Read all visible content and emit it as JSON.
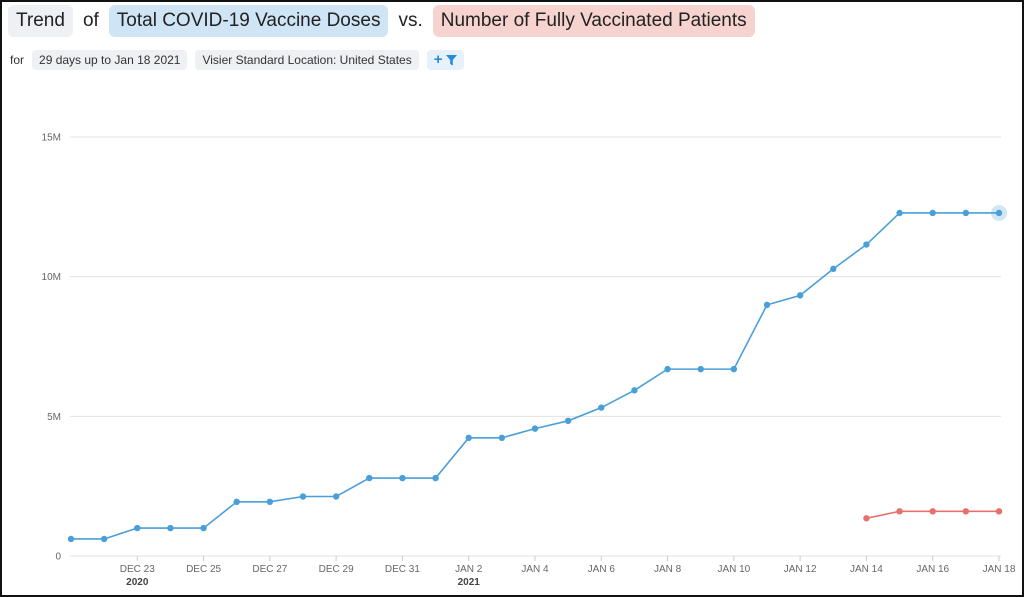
{
  "title": {
    "prefix": "Trend",
    "of": "of",
    "metric1": "Total COVID-19 Vaccine Doses",
    "vs": "vs.",
    "metric2": "Number of Fully Vaccinated Patients"
  },
  "filters": {
    "for_label": "for",
    "time_range": "29 days up to Jan 18 2021",
    "location": "Visier Standard Location: United States"
  },
  "colors": {
    "series1": "#4a9fd9",
    "series2": "#e8706b"
  },
  "chart_data": {
    "type": "line",
    "x": [
      "2020-12-21",
      "2020-12-22",
      "2020-12-23",
      "2020-12-24",
      "2020-12-25",
      "2020-12-26",
      "2020-12-27",
      "2020-12-28",
      "2020-12-29",
      "2020-12-30",
      "2020-12-31",
      "2021-01-01",
      "2021-01-02",
      "2021-01-03",
      "2021-01-04",
      "2021-01-05",
      "2021-01-06",
      "2021-01-07",
      "2021-01-08",
      "2021-01-09",
      "2021-01-10",
      "2021-01-11",
      "2021-01-12",
      "2021-01-13",
      "2021-01-14",
      "2021-01-15",
      "2021-01-16",
      "2021-01-17",
      "2021-01-18"
    ],
    "series": [
      {
        "name": "Total COVID-19 Vaccine Doses",
        "values": [
          0.61,
          0.61,
          1.0,
          1.0,
          1.0,
          1.94,
          1.94,
          2.13,
          2.13,
          2.79,
          2.79,
          2.79,
          4.23,
          4.23,
          4.56,
          4.84,
          5.31,
          5.93,
          6.69,
          6.69,
          6.69,
          8.99,
          9.33,
          10.28,
          11.15,
          12.28,
          12.28,
          12.28,
          12.28
        ]
      },
      {
        "name": "Number of Fully Vaccinated Patients",
        "values": [
          null,
          null,
          null,
          null,
          null,
          null,
          null,
          null,
          null,
          null,
          null,
          null,
          null,
          null,
          null,
          null,
          null,
          null,
          null,
          null,
          null,
          null,
          null,
          null,
          1.35,
          1.6,
          1.6,
          1.6,
          1.6
        ]
      }
    ],
    "x_ticks": [
      "DEC 23",
      "DEC 25",
      "DEC 27",
      "DEC 29",
      "DEC 31",
      "JAN 2",
      "JAN 4",
      "JAN 6",
      "JAN 8",
      "JAN 10",
      "JAN 12",
      "JAN 14",
      "JAN 16",
      "JAN 18"
    ],
    "x_tick_index": [
      2,
      4,
      6,
      8,
      10,
      12,
      14,
      16,
      18,
      20,
      22,
      24,
      26,
      28
    ],
    "year_labels": [
      {
        "label": "2020",
        "index": 2
      },
      {
        "label": "2021",
        "index": 12
      }
    ],
    "y_ticks": [
      "0",
      "5M",
      "10M",
      "15M"
    ],
    "y_tick_values": [
      0,
      5,
      10,
      15
    ],
    "ylim": [
      0,
      15
    ],
    "grid": true,
    "highlight_index": 28
  }
}
